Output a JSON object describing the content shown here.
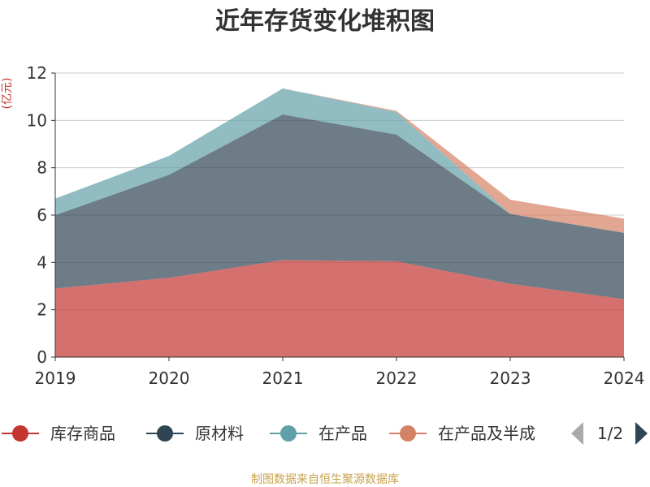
{
  "chart_data": {
    "type": "area",
    "stacked": true,
    "title": "近年存货变化堆积图",
    "unit_label": "(亿元)",
    "categories": [
      "2019",
      "2020",
      "2021",
      "2022",
      "2023",
      "2024"
    ],
    "ylim": [
      0,
      12
    ],
    "yticks": [
      0,
      2,
      4,
      6,
      8,
      10,
      12
    ],
    "grid": true,
    "series": [
      {
        "name": "库存商品",
        "color": "#c23531",
        "values": [
          2.9,
          3.35,
          4.1,
          4.05,
          3.1,
          2.45
        ]
      },
      {
        "name": "原材料",
        "color": "#2f4554",
        "values": [
          3.1,
          4.35,
          6.15,
          5.35,
          2.95,
          2.8
        ]
      },
      {
        "name": "在产品",
        "color": "#61a0a8",
        "values": [
          0.7,
          0.8,
          1.1,
          0.95,
          0.0,
          0.0
        ]
      },
      {
        "name": "在产品及半成品",
        "color": "#d48265",
        "values": [
          0.0,
          0.0,
          0.0,
          0.05,
          0.6,
          0.6
        ]
      }
    ],
    "legend": {
      "position": "bottom",
      "visible_labels": [
        "库存商品",
        "原材料",
        "在产品",
        "在产品及半成"
      ],
      "page": "1/2"
    },
    "source": "制图数据来自恒生聚源数据库"
  }
}
